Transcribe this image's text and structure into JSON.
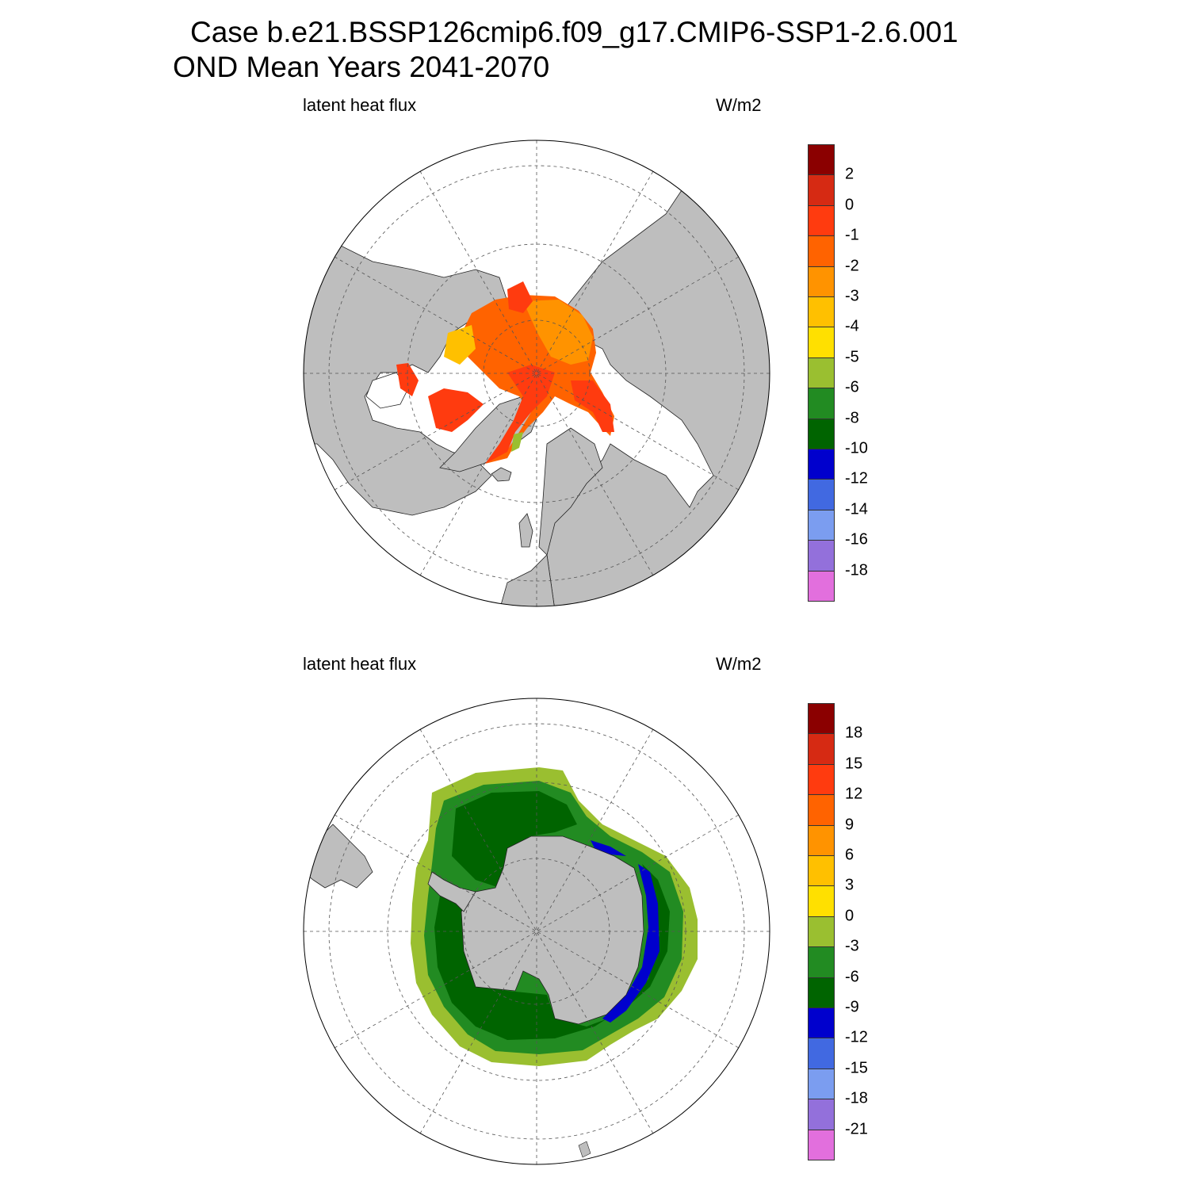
{
  "title": {
    "line1": "Case b.e21.BSSP126cmip6.f09_g17.CMIP6-SSP1-2.6.001",
    "line2": "OND Mean   Years 2041-2070"
  },
  "panels": [
    {
      "id": "north",
      "hemisphere": "Northern Hemisphere polar stereographic",
      "left_label": "latent heat flux",
      "right_label": "W/m2",
      "colorbar": {
        "colors": [
          "#8b0000",
          "#d62a13",
          "#ff3b0f",
          "#ff6300",
          "#ff9300",
          "#ffc000",
          "#ffe000",
          "#9abf30",
          "#228b22",
          "#006400",
          "#0000cd",
          "#4169e1",
          "#7b9df0",
          "#9370db",
          "#e26fdd"
        ],
        "labels": [
          "2",
          "0",
          "-1",
          "-2",
          "-3",
          "-4",
          "-5",
          "-6",
          "-8",
          "-10",
          "-12",
          "-14",
          "-16",
          "-18"
        ]
      }
    },
    {
      "id": "south",
      "hemisphere": "Southern Hemisphere polar stereographic",
      "left_label": "latent heat flux",
      "right_label": "W/m2",
      "colorbar": {
        "colors": [
          "#8b0000",
          "#d62a13",
          "#ff3b0f",
          "#ff6300",
          "#ff9300",
          "#ffc000",
          "#ffe000",
          "#9abf30",
          "#228b22",
          "#006400",
          "#0000cd",
          "#4169e1",
          "#7b9df0",
          "#9370db",
          "#e26fdd"
        ],
        "labels": [
          "18",
          "15",
          "12",
          "9",
          "6",
          "3",
          "0",
          "-3",
          "-6",
          "-9",
          "-12",
          "-15",
          "-18",
          "-21"
        ]
      }
    }
  ],
  "colors": {
    "land": "#bebebe",
    "grid": "#555555",
    "ocean_no_data": "#ffffff"
  }
}
